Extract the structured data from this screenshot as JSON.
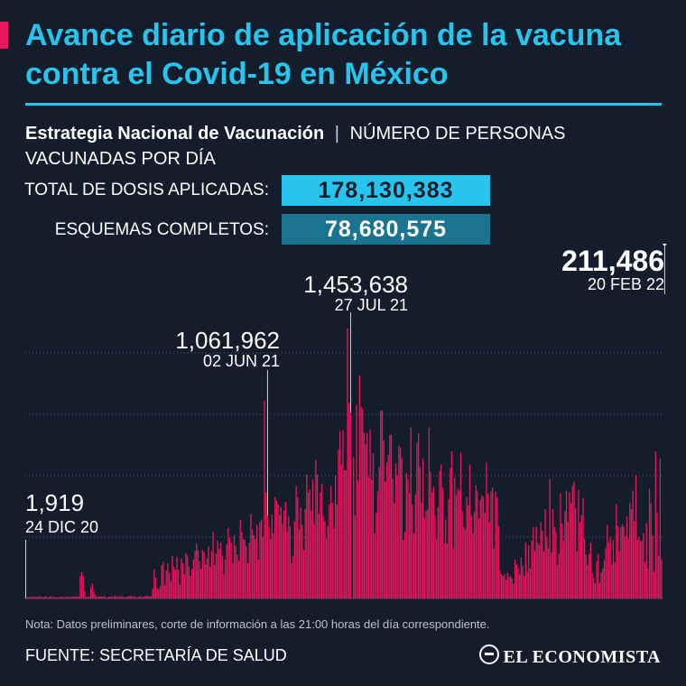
{
  "header": {
    "title": "Avance diario de aplicación de la vacuna contra el Covid-19 en México",
    "subtitle_strong": "Estrategia Nacional de Vacunación",
    "subtitle_separator": "|",
    "subtitle_rest": "NÚMERO DE PERSONAS VACUNADAS POR DÍA"
  },
  "stats": {
    "total_label": "TOTAL DE DOSIS APLICADAS:",
    "total_value": "178,130,383",
    "complete_label": "ESQUEMAS COMPLETOS:",
    "complete_value": "78,680,575"
  },
  "footer": {
    "note": "Nota: Datos preliminares, corte de información a las 21:00 horas del día correspondiente.",
    "source": "FUENTE: SECRETARÍA DE SALUD",
    "brand": "EL ECONOMISTA"
  },
  "colors": {
    "background": "#131d2b",
    "title": "#27c5ee",
    "bars": "#e8175d",
    "accent": "#e8175d",
    "gridlines": "#4a5a70"
  },
  "chart_data": {
    "type": "bar",
    "x_start": "24 DIC 20",
    "x_end": "20 FEB 22",
    "ylim": [
      0,
      1650000
    ],
    "grid": "dotted horizontal",
    "annotations": [
      {
        "value": "1,919",
        "date": "24 DIC 20",
        "index": 0
      },
      {
        "value": "1,061,962",
        "date": "02 JUN 21",
        "index": 160
      },
      {
        "value": "1,453,638",
        "date": "27 JUL 21",
        "index": 215
      },
      {
        "value": "211,486",
        "date": "20 FEB 22",
        "index": 423
      }
    ],
    "values": [
      1919,
      6004,
      8013,
      8011,
      8002,
      10008,
      8009,
      8008,
      10006,
      12008,
      8011,
      8011,
      8012,
      12005,
      8002,
      6007,
      12012,
      10004,
      8004,
      8012,
      6012,
      6008,
      6014,
      10007,
      8011,
      6015,
      8005,
      8010,
      8000,
      8014,
      10009,
      8013,
      12016,
      8005,
      12012,
      10010,
      120016,
      140006,
      120016,
      40015,
      8012,
      10017,
      8009,
      60007,
      80007,
      40004,
      20007,
      8006,
      10004,
      12010,
      10019,
      10002,
      14024,
      6018,
      6002,
      10012,
      10020,
      12004,
      8018,
      14026,
      12021,
      8026,
      12014,
      10028,
      12026,
      8020,
      6028,
      10026,
      12024,
      14025,
      14017,
      8020,
      12028,
      8032,
      6024,
      10032,
      14028,
      6025,
      10025,
      12030,
      14031,
      12028,
      10038,
      12031,
      52005,
      155003,
      110008,
      55004,
      50001,
      65007,
      180004,
      195001,
      70007,
      150005,
      190007,
      140006,
      95003,
      230000,
      170004,
      155005,
      225000,
      155003,
      75005,
      215008,
      190003,
      130003,
      245008,
      230007,
      170005,
      120001,
      160002,
      210005,
      255003,
      295008,
      260005,
      200002,
      160006,
      260001,
      250007,
      185006,
      215005,
      280007,
      170003,
      255008,
      360005,
      180003,
      240004,
      310001,
      265007,
      300003,
      230000,
      130007,
      210002,
      290005,
      380000,
      330006,
      300005,
      190002,
      340004,
      285000,
      235005,
      205001,
      420004,
      360006,
      320000,
      315007,
      280005,
      190008,
      300000,
      455003,
      370008,
      340001,
      320002,
      395006,
      210004,
      410008,
      425003,
      330000,
      1061962,
      570000,
      445004,
      385008,
      320002,
      450001,
      350007,
      545003,
      525007,
      505006,
      450003,
      490001,
      400004,
      475006,
      520003,
      360007,
      440006,
      385004,
      190005,
      230002,
      415003,
      605004,
      545002,
      375000,
      490000,
      395005,
      260006,
      480002,
      665004,
      570002,
      585001,
      470005,
      640003,
      400004,
      745003,
      665003,
      455003,
      570004,
      615003,
      440005,
      415000,
      325003,
      390005,
      505003,
      605003,
      515003,
      380000,
      660005,
      505006,
      800002,
      900007,
      720001,
      905002,
      690004,
      690003,
      1453638,
      1050005,
      1000003,
      1002,
      760005,
      445003,
      1040006,
      635005,
      1200001,
      1030002,
      1020003,
      890004,
      830004,
      890002,
      650005,
      910000,
      640002,
      780003,
      350004,
      460005,
      575003,
      705006,
      1010005,
      1010000,
      850002,
      630005,
      730003,
      770003,
      880004,
      880003,
      645004,
      510002,
      725002,
      660002,
      820001,
      810003,
      755001,
      315001,
      360003,
      675003,
      640003,
      565005,
      920001,
      505001,
      350006,
      560002,
      835003,
      890004,
      710006,
      515000,
      750003,
      435004,
      470006,
      480005,
      920006,
      680004,
      570000,
      600002,
      445003,
      320005,
      490000,
      685002,
      720005,
      595004,
      295006,
      425003,
      295002,
      535000,
      700004,
      790006,
      270005,
      650001,
      555004,
      590003,
      580003,
      785005,
      470004,
      385005,
      370001,
      545005,
      500001,
      720006,
      445001,
      350005,
      465003,
      610004,
      580004,
      430003,
      530000,
      555006,
      545004,
      460004,
      730006,
      565002,
      410002,
      575002,
      595001,
      270003,
      575006,
      545005,
      390002,
      150006,
      130004,
      120007,
      130006,
      100008,
      140007,
      115005,
      120001,
      105006,
      80004,
      210003,
      185001,
      160000,
      130003,
      220004,
      175003,
      120002,
      300005,
      145002,
      285006,
      160006,
      310001,
      385002,
      255005,
      385006,
      300004,
      285008,
      410000,
      365002,
      255001,
      480002,
      330006,
      270004,
      640006,
      250003,
      480008,
      385001,
      355004,
      180007,
      240006,
      565004,
      405000,
      310003,
      470004,
      580002,
      410001,
      570008,
      515004,
      605000,
      630004,
      485005,
      255008,
      585001,
      410007,
      445001,
      540002,
      320004,
      235000,
      180002,
      240005,
      300004,
      140006,
      110003,
      80008,
      200004,
      240003,
      85001,
      140001,
      160000,
      205005,
      270000,
      395003,
      300002,
      330004,
      185002,
      315007,
      195000,
      505002,
      390001,
      255004,
      380007,
      400002,
      385001,
      335003,
      440005,
      320002,
      515004,
      480007,
      580003,
      415003,
      665007,
      315001,
      330005,
      305004,
      310003,
      350005,
      195005,
      405004,
      160008,
      590003,
      510004,
      340003,
      145004,
      790007,
      460003,
      230007,
      750005,
      211486
    ]
  }
}
